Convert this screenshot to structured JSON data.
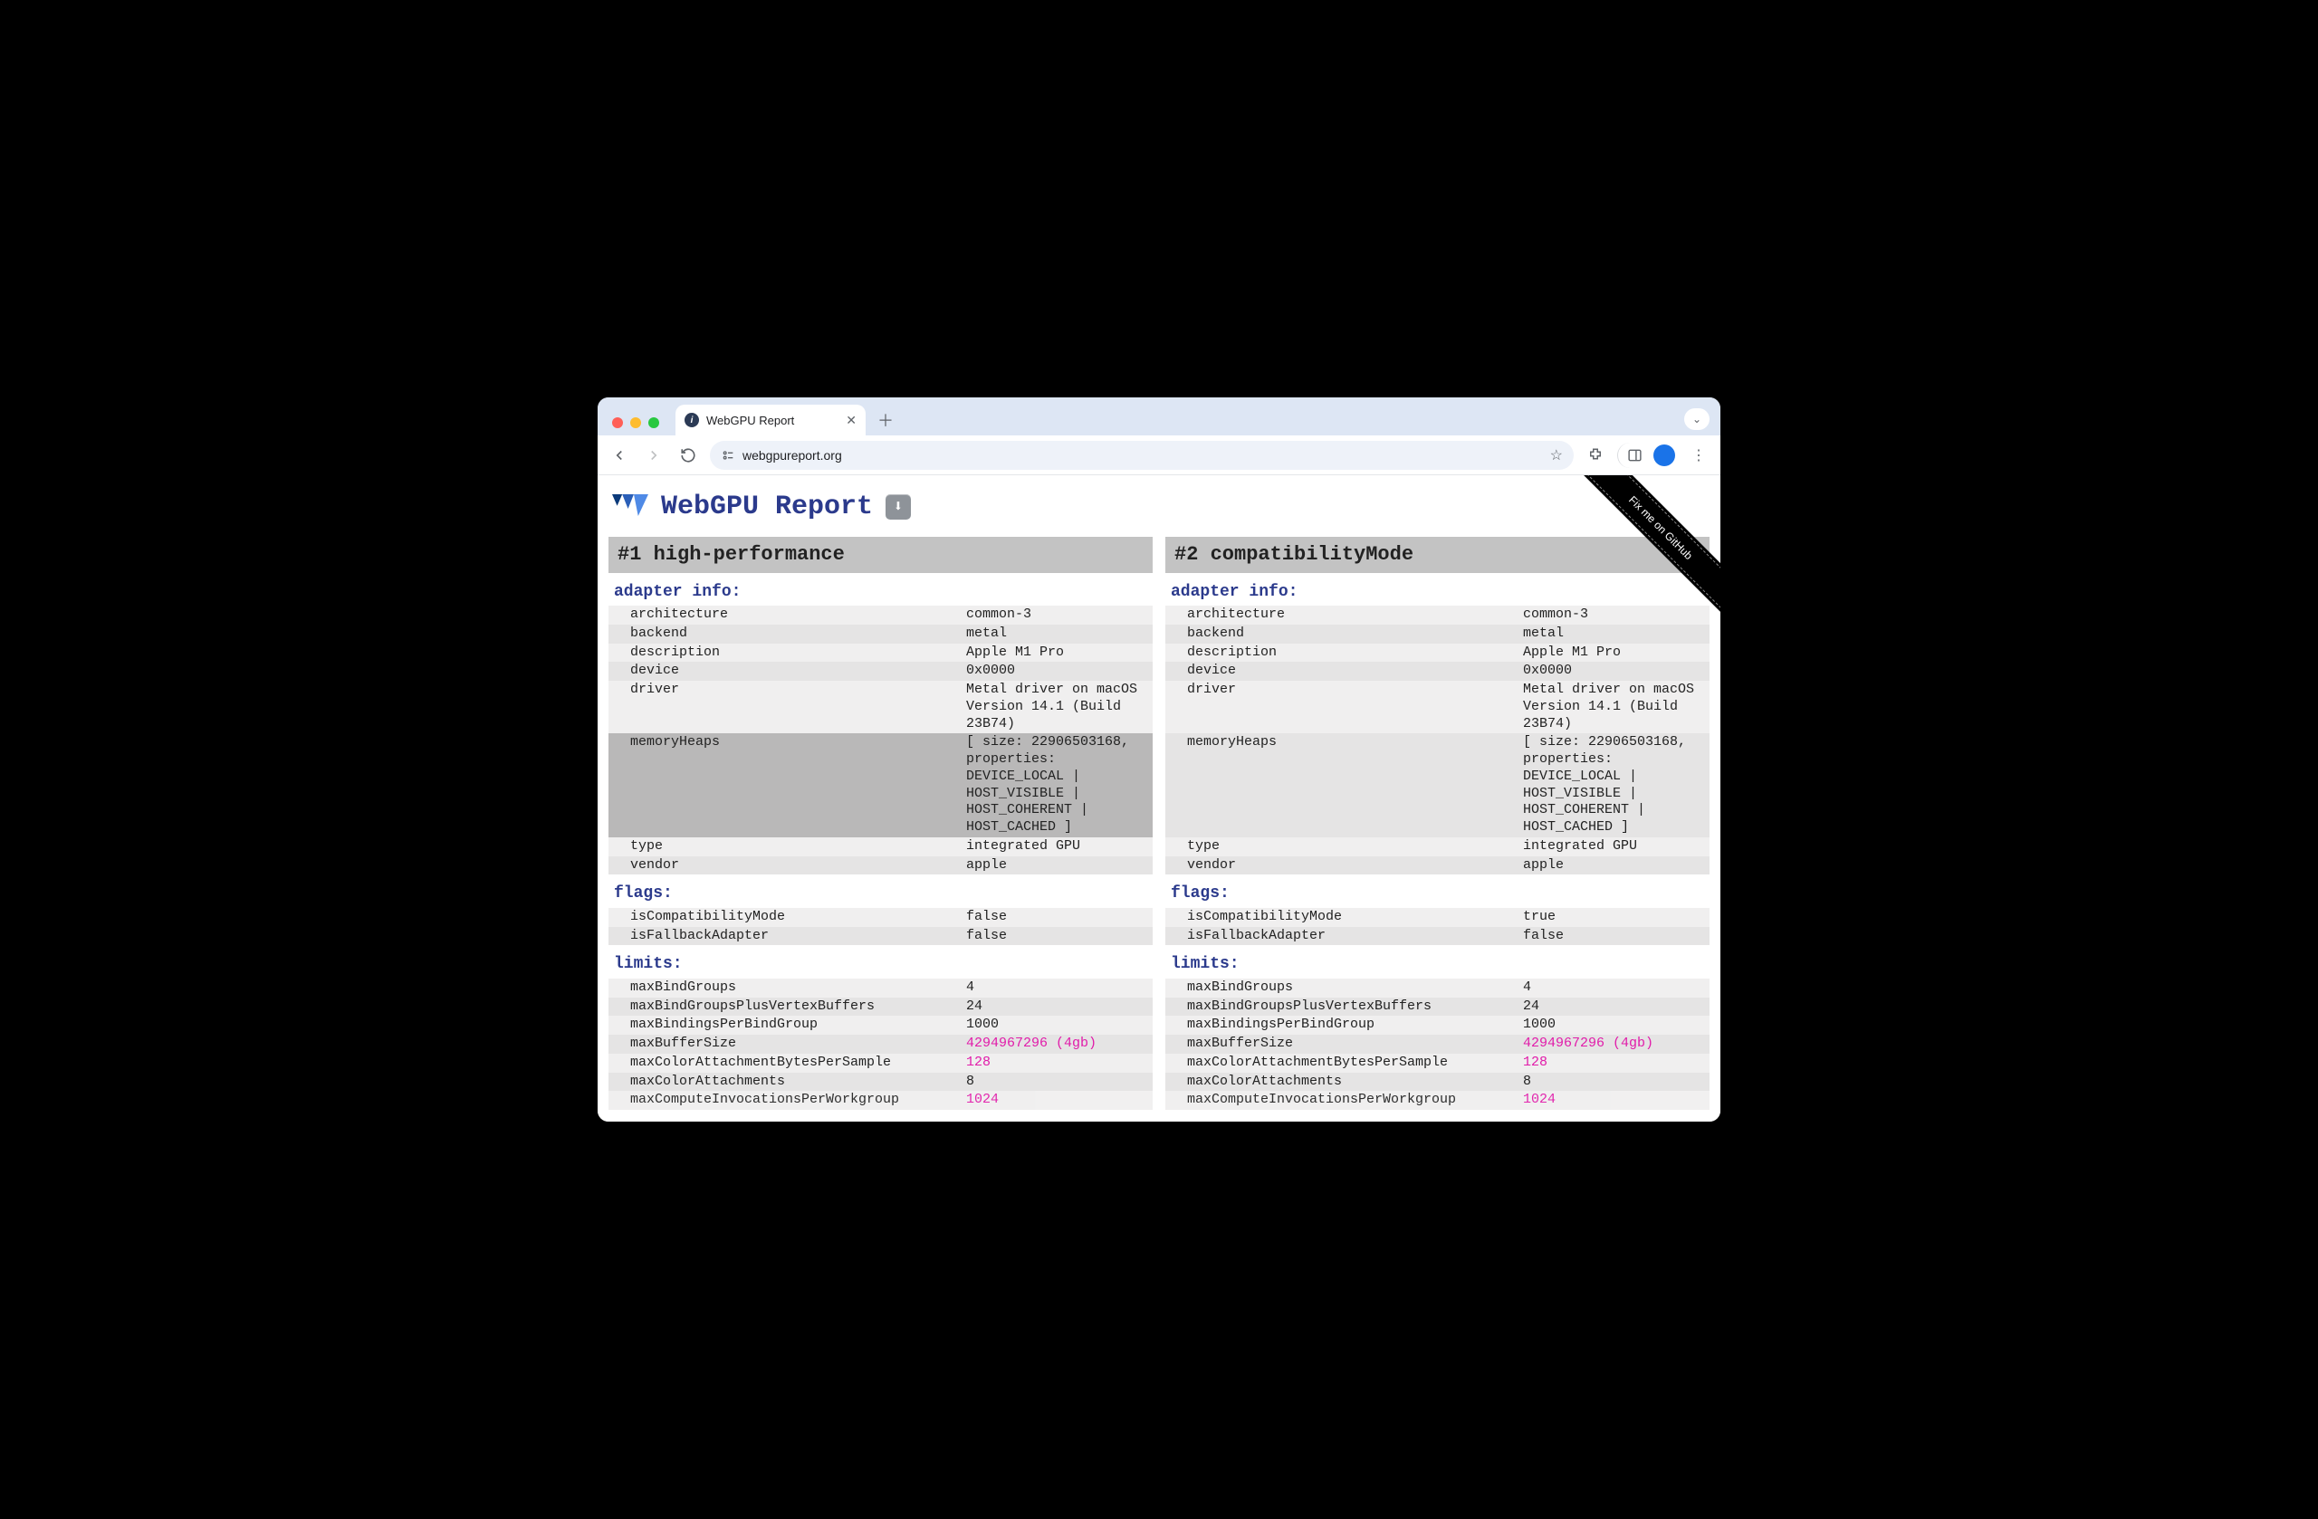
{
  "browser": {
    "tab_title": "WebGPU Report",
    "url": "webgpureport.org"
  },
  "page": {
    "title": "WebGPU Report",
    "github_ribbon": "Fix me on GitHub"
  },
  "colors": {
    "heading": "#2b3a8c",
    "panel_title_bg": "#c3c3c3",
    "row_even": "#f0efef",
    "row_odd": "#e5e4e4",
    "row_highlight": "#b9b8b8",
    "pink": "#e11caa"
  },
  "panels": [
    {
      "title": "#1 high-performance",
      "sections": [
        {
          "title": "adapter info:",
          "rows": [
            {
              "k": "architecture",
              "v": "common-3"
            },
            {
              "k": "backend",
              "v": "metal"
            },
            {
              "k": "description",
              "v": "Apple M1 Pro"
            },
            {
              "k": "device",
              "v": "0x0000"
            },
            {
              "k": "driver",
              "v": "Metal driver on macOS Version 14.1 (Build 23B74)"
            },
            {
              "k": "memoryHeaps",
              "v": "[ size: 22906503168, properties: DEVICE_LOCAL | HOST_VISIBLE | HOST_COHERENT | HOST_CACHED ]",
              "highlight": true
            },
            {
              "k": "type",
              "v": "integrated GPU"
            },
            {
              "k": "vendor",
              "v": "apple"
            }
          ]
        },
        {
          "title": "flags:",
          "rows": [
            {
              "k": "isCompatibilityMode",
              "v": "false"
            },
            {
              "k": "isFallbackAdapter",
              "v": "false"
            }
          ]
        },
        {
          "title": "limits:",
          "rows": [
            {
              "k": "maxBindGroups",
              "v": "4"
            },
            {
              "k": "maxBindGroupsPlusVertexBuffers",
              "v": "24"
            },
            {
              "k": "maxBindingsPerBindGroup",
              "v": "1000"
            },
            {
              "k": "maxBufferSize",
              "v": "4294967296 (4gb)",
              "pink": true
            },
            {
              "k": "maxColorAttachmentBytesPerSample",
              "v": "128",
              "pink": true
            },
            {
              "k": "maxColorAttachments",
              "v": "8"
            },
            {
              "k": "maxComputeInvocationsPerWorkgroup",
              "v": "1024",
              "pink": true,
              "partial": true
            }
          ]
        }
      ]
    },
    {
      "title": "#2 compatibilityMode",
      "sections": [
        {
          "title": "adapter info:",
          "rows": [
            {
              "k": "architecture",
              "v": "common-3"
            },
            {
              "k": "backend",
              "v": "metal"
            },
            {
              "k": "description",
              "v": "Apple M1 Pro"
            },
            {
              "k": "device",
              "v": "0x0000"
            },
            {
              "k": "driver",
              "v": "Metal driver on macOS Version 14.1 (Build 23B74)"
            },
            {
              "k": "memoryHeaps",
              "v": "[ size: 22906503168, properties: DEVICE_LOCAL | HOST_VISIBLE | HOST_COHERENT | HOST_CACHED ]"
            },
            {
              "k": "type",
              "v": "integrated GPU"
            },
            {
              "k": "vendor",
              "v": "apple"
            }
          ]
        },
        {
          "title": "flags:",
          "rows": [
            {
              "k": "isCompatibilityMode",
              "v": "true"
            },
            {
              "k": "isFallbackAdapter",
              "v": "false"
            }
          ]
        },
        {
          "title": "limits:",
          "rows": [
            {
              "k": "maxBindGroups",
              "v": "4"
            },
            {
              "k": "maxBindGroupsPlusVertexBuffers",
              "v": "24"
            },
            {
              "k": "maxBindingsPerBindGroup",
              "v": "1000"
            },
            {
              "k": "maxBufferSize",
              "v": "4294967296 (4gb)",
              "pink": true
            },
            {
              "k": "maxColorAttachmentBytesPerSample",
              "v": "128",
              "pink": true
            },
            {
              "k": "maxColorAttachments",
              "v": "8"
            },
            {
              "k": "maxComputeInvocationsPerWorkgroup",
              "v": "1024",
              "pink": true,
              "partial": true
            }
          ]
        }
      ]
    }
  ]
}
